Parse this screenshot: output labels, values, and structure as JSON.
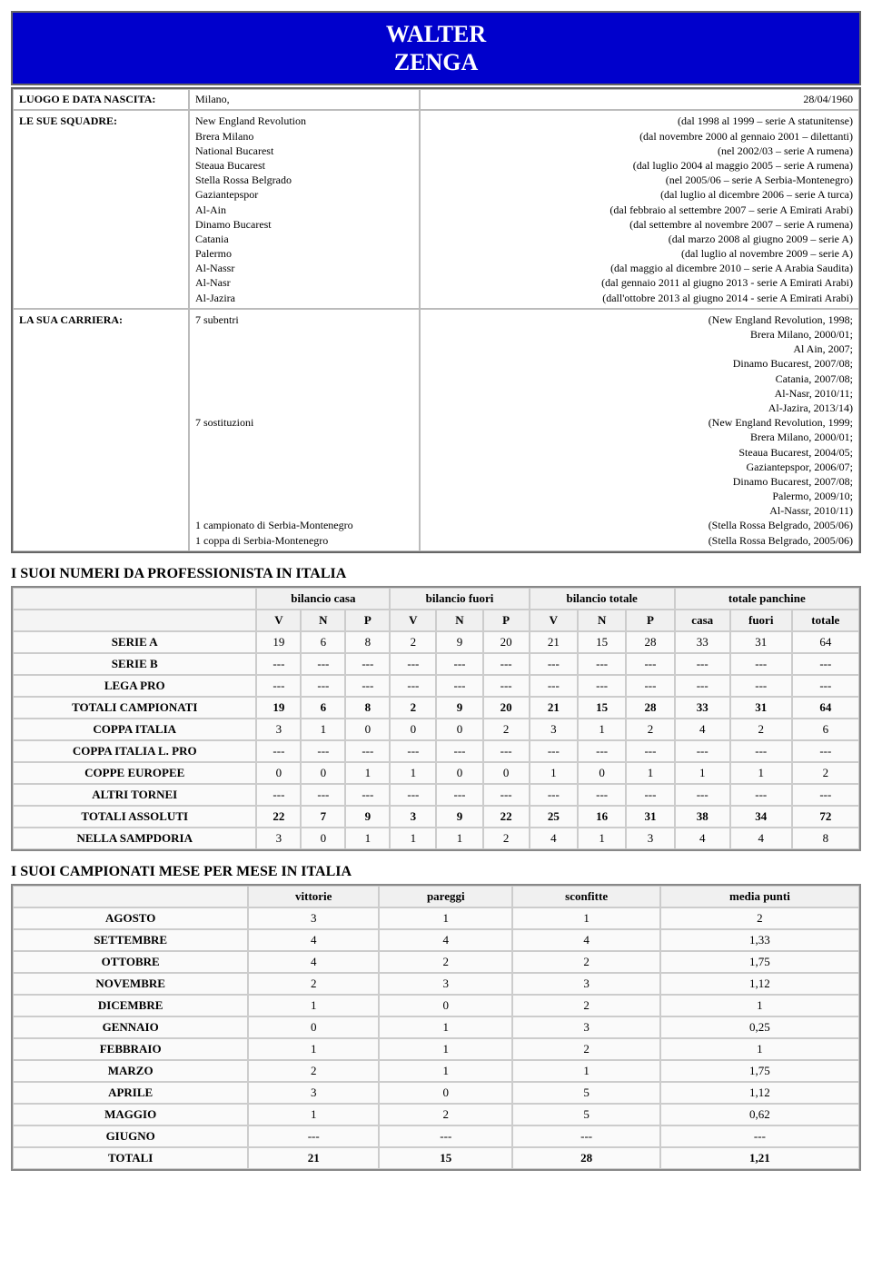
{
  "header": {
    "line1": "WALTER",
    "line2": "ZENGA"
  },
  "info": {
    "birth_label": "LUOGO E DATA NASCITA:",
    "birth_place": "Milano,",
    "birth_date": "28/04/1960",
    "squadre_label": "LE SUE SQUADRE:",
    "carriera_label": "LA SUA CARRIERA:",
    "teams": [
      {
        "name": "New England Revolution",
        "period": "(dal 1998 al 1999 – serie A statunitense)"
      },
      {
        "name": "Brera Milano",
        "period": "(dal novembre 2000 al gennaio 2001 – dilettanti)"
      },
      {
        "name": "National Bucarest",
        "period": "(nel 2002/03 – serie A rumena)"
      },
      {
        "name": "Steaua Bucarest",
        "period": "(dal luglio 2004 al maggio 2005 – serie A rumena)"
      },
      {
        "name": "Stella Rossa Belgrado",
        "period": "(nel 2005/06 – serie A Serbia-Montenegro)"
      },
      {
        "name": "Gaziantepspor",
        "period": "(dal luglio al dicembre 2006 – serie A turca)"
      },
      {
        "name": "Al-Ain",
        "period": "(dal febbraio al settembre 2007 – serie A Emirati Arabi)"
      },
      {
        "name": "Dinamo Bucarest",
        "period": "(dal settembre al novembre 2007 – serie A rumena)"
      },
      {
        "name": "Catania",
        "period": "(dal marzo 2008 al giugno 2009 – serie A)"
      },
      {
        "name": "Palermo",
        "period": "(dal luglio al novembre 2009 – serie A)"
      },
      {
        "name": "Al-Nassr",
        "period": "(dal maggio al dicembre 2010 – serie A Arabia Saudita)"
      },
      {
        "name": "Al-Nasr",
        "period": "(dal gennaio 2011 al giugno 2013 - serie A Emirati Arabi)"
      },
      {
        "name": "Al-Jazira",
        "period": "(dall'ottobre 2013 al giugno 2014 - serie A Emirati Arabi)"
      }
    ],
    "career": [
      {
        "left": "7 subentri",
        "right": "(New England Revolution, 1998;"
      },
      {
        "left": "",
        "right": "Brera Milano, 2000/01;"
      },
      {
        "left": "",
        "right": "Al Ain, 2007;"
      },
      {
        "left": "",
        "right": "Dinamo Bucarest, 2007/08;"
      },
      {
        "left": "",
        "right": "Catania, 2007/08;"
      },
      {
        "left": "",
        "right": "Al-Nasr, 2010/11;"
      },
      {
        "left": "",
        "right": "Al-Jazira, 2013/14)"
      },
      {
        "left": "7 sostituzioni",
        "right": "(New England Revolution, 1999;"
      },
      {
        "left": "",
        "right": "Brera Milano, 2000/01;"
      },
      {
        "left": "",
        "right": "Steaua Bucarest, 2004/05;"
      },
      {
        "left": "",
        "right": "Gaziantepspor, 2006/07;"
      },
      {
        "left": "",
        "right": "Dinamo Bucarest, 2007/08;"
      },
      {
        "left": "",
        "right": "Palermo, 2009/10;"
      },
      {
        "left": "",
        "right": "Al-Nassr, 2010/11)"
      },
      {
        "left": "1 campionato di Serbia-Montenegro",
        "right": "(Stella Rossa Belgrado, 2005/06)"
      },
      {
        "left": "1 coppa di Serbia-Montenegro",
        "right": "(Stella Rossa Belgrado, 2005/06)"
      }
    ]
  },
  "stats": {
    "title": "I SUOI NUMERI DA PROFESSIONISTA IN ITALIA",
    "group_headers": [
      "",
      "bilancio casa",
      "bilancio fuori",
      "bilancio totale",
      "totale panchine"
    ],
    "sub_headers": [
      "",
      "V",
      "N",
      "P",
      "V",
      "N",
      "P",
      "V",
      "N",
      "P",
      "casa",
      "fuori",
      "totale"
    ],
    "rows": [
      {
        "label": "SERIE A",
        "cells": [
          "19",
          "6",
          "8",
          "2",
          "9",
          "20",
          "21",
          "15",
          "28",
          "33",
          "31",
          "64"
        ],
        "bold": false
      },
      {
        "label": "SERIE B",
        "cells": [
          "---",
          "---",
          "---",
          "---",
          "---",
          "---",
          "---",
          "---",
          "---",
          "---",
          "---",
          "---"
        ],
        "bold": false
      },
      {
        "label": "LEGA PRO",
        "cells": [
          "---",
          "---",
          "---",
          "---",
          "---",
          "---",
          "---",
          "---",
          "---",
          "---",
          "---",
          "---"
        ],
        "bold": false
      },
      {
        "label": "TOTALI CAMPIONATI",
        "cells": [
          "19",
          "6",
          "8",
          "2",
          "9",
          "20",
          "21",
          "15",
          "28",
          "33",
          "31",
          "64"
        ],
        "bold": true
      },
      {
        "label": "COPPA ITALIA",
        "cells": [
          "3",
          "1",
          "0",
          "0",
          "0",
          "2",
          "3",
          "1",
          "2",
          "4",
          "2",
          "6"
        ],
        "bold": false
      },
      {
        "label": "COPPA ITALIA L. PRO",
        "cells": [
          "---",
          "---",
          "---",
          "---",
          "---",
          "---",
          "---",
          "---",
          "---",
          "---",
          "---",
          "---"
        ],
        "bold": false
      },
      {
        "label": "COPPE EUROPEE",
        "cells": [
          "0",
          "0",
          "1",
          "1",
          "0",
          "0",
          "1",
          "0",
          "1",
          "1",
          "1",
          "2"
        ],
        "bold": false
      },
      {
        "label": "ALTRI TORNEI",
        "cells": [
          "---",
          "---",
          "---",
          "---",
          "---",
          "---",
          "---",
          "---",
          "---",
          "---",
          "---",
          "---"
        ],
        "bold": false
      },
      {
        "label": "TOTALI ASSOLUTI",
        "cells": [
          "22",
          "7",
          "9",
          "3",
          "9",
          "22",
          "25",
          "16",
          "31",
          "38",
          "34",
          "72"
        ],
        "bold": true
      },
      {
        "label": "NELLA SAMPDORIA",
        "cells": [
          "3",
          "0",
          "1",
          "1",
          "1",
          "2",
          "4",
          "1",
          "3",
          "4",
          "4",
          "8"
        ],
        "bold": false
      }
    ]
  },
  "months": {
    "title": "I SUOI CAMPIONATI MESE PER MESE IN ITALIA",
    "headers": [
      "",
      "vittorie",
      "pareggi",
      "sconfitte",
      "media punti"
    ],
    "rows": [
      {
        "label": "AGOSTO",
        "cells": [
          "3",
          "1",
          "1",
          "2"
        ],
        "bold": false
      },
      {
        "label": "SETTEMBRE",
        "cells": [
          "4",
          "4",
          "4",
          "1,33"
        ],
        "bold": false
      },
      {
        "label": "OTTOBRE",
        "cells": [
          "4",
          "2",
          "2",
          "1,75"
        ],
        "bold": false
      },
      {
        "label": "NOVEMBRE",
        "cells": [
          "2",
          "3",
          "3",
          "1,12"
        ],
        "bold": false
      },
      {
        "label": "DICEMBRE",
        "cells": [
          "1",
          "0",
          "2",
          "1"
        ],
        "bold": false
      },
      {
        "label": "GENNAIO",
        "cells": [
          "0",
          "1",
          "3",
          "0,25"
        ],
        "bold": false
      },
      {
        "label": "FEBBRAIO",
        "cells": [
          "1",
          "1",
          "2",
          "1"
        ],
        "bold": false
      },
      {
        "label": "MARZO",
        "cells": [
          "2",
          "1",
          "1",
          "1,75"
        ],
        "bold": false
      },
      {
        "label": "APRILE",
        "cells": [
          "3",
          "0",
          "5",
          "1,12"
        ],
        "bold": false
      },
      {
        "label": "MAGGIO",
        "cells": [
          "1",
          "2",
          "5",
          "0,62"
        ],
        "bold": false
      },
      {
        "label": "GIUGNO",
        "cells": [
          "---",
          "---",
          "---",
          "---"
        ],
        "bold": false
      },
      {
        "label": "TOTALI",
        "cells": [
          "21",
          "15",
          "28",
          "1,21"
        ],
        "bold": true
      }
    ]
  }
}
